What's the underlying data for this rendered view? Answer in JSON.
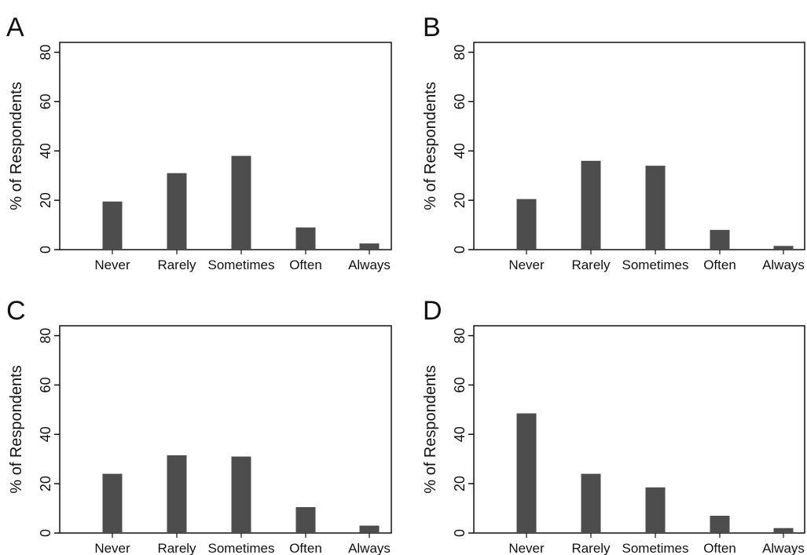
{
  "chart_data": [
    {
      "type": "bar",
      "panel": "A",
      "categories": [
        "Never",
        "Rarely",
        "Sometimes",
        "Often",
        "Always"
      ],
      "values": [
        19.5,
        31,
        38,
        9,
        2.5
      ],
      "title": "",
      "xlabel": "",
      "ylabel": "% of Respondents",
      "ylim": [
        0,
        84
      ],
      "yticks": [
        "0",
        "20",
        "40",
        "60",
        "80"
      ],
      "bar_color": "#4d4d4d",
      "grid": false
    },
    {
      "type": "bar",
      "panel": "B",
      "categories": [
        "Never",
        "Rarely",
        "Sometimes",
        "Often",
        "Always"
      ],
      "values": [
        20.5,
        36,
        34,
        8,
        1.5
      ],
      "title": "",
      "xlabel": "",
      "ylabel": "% of Respondents",
      "ylim": [
        0,
        84
      ],
      "yticks": [
        "0",
        "20",
        "40",
        "60",
        "80"
      ],
      "bar_color": "#4d4d4d",
      "grid": false
    },
    {
      "type": "bar",
      "panel": "C",
      "categories": [
        "Never",
        "Rarely",
        "Sometimes",
        "Often",
        "Always"
      ],
      "values": [
        24,
        31.5,
        31,
        10.5,
        3
      ],
      "title": "",
      "xlabel": "",
      "ylabel": "% of Respondents",
      "ylim": [
        0,
        84
      ],
      "yticks": [
        "0",
        "20",
        "40",
        "60",
        "80"
      ],
      "bar_color": "#4d4d4d",
      "grid": false
    },
    {
      "type": "bar",
      "panel": "D",
      "categories": [
        "Never",
        "Rarely",
        "Sometimes",
        "Often",
        "Always"
      ],
      "values": [
        48.5,
        24,
        18.5,
        7,
        2
      ],
      "title": "",
      "xlabel": "",
      "ylabel": "% of Respondents",
      "ylim": [
        0,
        84
      ],
      "yticks": [
        "0",
        "20",
        "40",
        "60",
        "80"
      ],
      "bar_color": "#4d4d4d",
      "grid": false
    }
  ]
}
